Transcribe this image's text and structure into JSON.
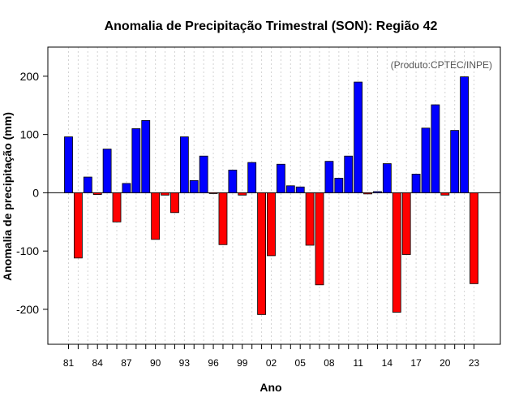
{
  "chart_data": {
    "type": "bar",
    "title": "Anomalia de Precipitação Trimestral (SON): Região 42",
    "xlabel": "Ano",
    "ylabel": "Anomalia de precipitação (mm)",
    "annotation": "(Produto:CPTEC/INPE)",
    "ylim": [
      -260,
      250
    ],
    "yticks": [
      -200,
      -100,
      0,
      100,
      200
    ],
    "tick_labels": [
      "81",
      "84",
      "87",
      "90",
      "93",
      "96",
      "99",
      "02",
      "05",
      "08",
      "11",
      "14",
      "17",
      "20",
      "23"
    ],
    "tick_label_years": [
      1981,
      1984,
      1987,
      1990,
      1993,
      1996,
      1999,
      2002,
      2005,
      2008,
      2011,
      2014,
      2017,
      2020,
      2023
    ],
    "grid": true,
    "colors": {
      "positive": "#0000FF",
      "negative": "#FF0000",
      "grid": "#d3d3d3",
      "frame": "#000000"
    },
    "x": [
      1981,
      1982,
      1983,
      1984,
      1985,
      1986,
      1987,
      1988,
      1989,
      1990,
      1991,
      1992,
      1993,
      1994,
      1995,
      1996,
      1997,
      1998,
      1999,
      2000,
      2001,
      2002,
      2003,
      2004,
      2005,
      2006,
      2007,
      2008,
      2009,
      2010,
      2011,
      2012,
      2013,
      2014,
      2015,
      2016,
      2017,
      2018,
      2019,
      2020,
      2021,
      2022,
      2023
    ],
    "values": [
      96,
      -112,
      27,
      -3,
      75,
      -50,
      16,
      110,
      124,
      -80,
      -4,
      -34,
      96,
      21,
      63,
      -1,
      -89,
      39,
      -4,
      52,
      -209,
      -108,
      49,
      12,
      10,
      -90,
      -158,
      54,
      25,
      63,
      190,
      -2,
      2,
      50,
      -205,
      -106,
      32,
      111,
      151,
      -4,
      107,
      199,
      -156
    ]
  }
}
